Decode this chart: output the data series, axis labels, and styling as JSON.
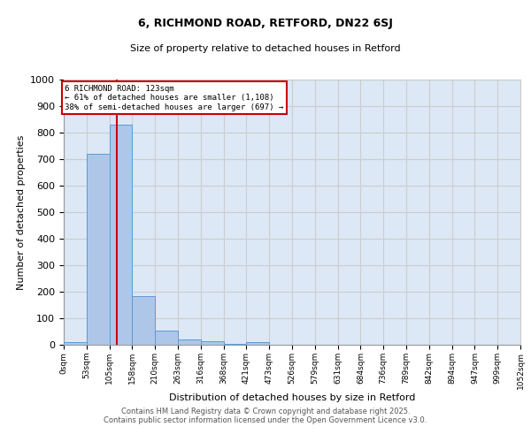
{
  "title1": "6, RICHMOND ROAD, RETFORD, DN22 6SJ",
  "title2": "Size of property relative to detached houses in Retford",
  "xlabel": "Distribution of detached houses by size in Retford",
  "ylabel": "Number of detached properties",
  "bar_edges": [
    0,
    53,
    105,
    158,
    210,
    263,
    316,
    368,
    421,
    473,
    526,
    579,
    631,
    684,
    736,
    789,
    842,
    894,
    947,
    999,
    1052
  ],
  "bar_heights": [
    10,
    720,
    830,
    185,
    55,
    20,
    15,
    5,
    10,
    0,
    0,
    0,
    0,
    0,
    0,
    0,
    0,
    0,
    0,
    0
  ],
  "bar_color": "#aec6e8",
  "bar_edge_color": "#5b9bd5",
  "property_size": 123,
  "annotation_text": "6 RICHMOND ROAD: 123sqm\n← 61% of detached houses are smaller (1,108)\n38% of semi-detached houses are larger (697) →",
  "annotation_box_color": "#cc0000",
  "annotation_text_color": "#000000",
  "vline_color": "#cc0000",
  "ylim": [
    0,
    1000
  ],
  "yticks": [
    0,
    100,
    200,
    300,
    400,
    500,
    600,
    700,
    800,
    900,
    1000
  ],
  "grid_color": "#cccccc",
  "background_color": "#dce8f5",
  "footer1": "Contains HM Land Registry data © Crown copyright and database right 2025.",
  "footer2": "Contains public sector information licensed under the Open Government Licence v3.0.",
  "tick_labels": [
    "0sqm",
    "53sqm",
    "105sqm",
    "158sqm",
    "210sqm",
    "263sqm",
    "316sqm",
    "368sqm",
    "421sqm",
    "473sqm",
    "526sqm",
    "579sqm",
    "631sqm",
    "684sqm",
    "736sqm",
    "789sqm",
    "842sqm",
    "894sqm",
    "947sqm",
    "999sqm",
    "1052sqm"
  ]
}
